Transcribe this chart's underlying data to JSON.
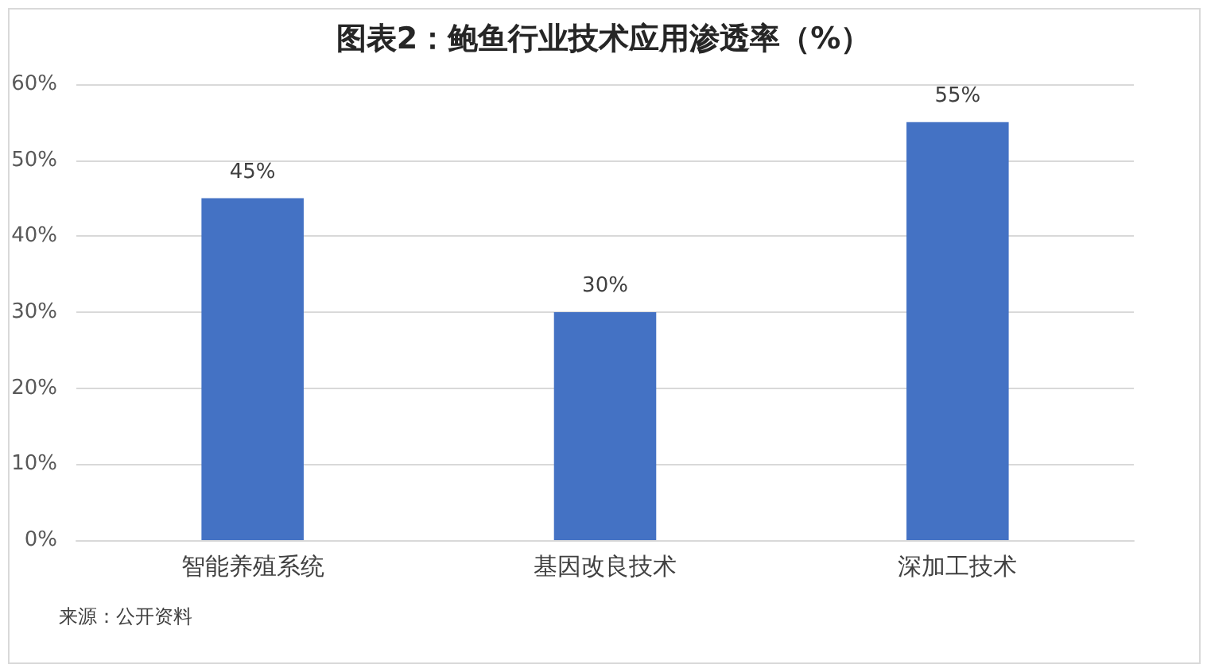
{
  "chart_data": {
    "type": "bar",
    "title": "图表2：鲍鱼行业技术应用渗透率（%）",
    "categories": [
      "智能养殖系统",
      "基因改良技术",
      "深加工技术"
    ],
    "values": [
      45,
      30,
      55
    ],
    "value_labels": [
      "45%",
      "30%",
      "55%"
    ],
    "color": "#4472c4",
    "ylim": [
      0,
      60
    ],
    "yticks": [
      {
        "value": 0,
        "label": "0%"
      },
      {
        "value": 10,
        "label": "10%"
      },
      {
        "value": 20,
        "label": "20%"
      },
      {
        "value": 30,
        "label": "30%"
      },
      {
        "value": 40,
        "label": "40%"
      },
      {
        "value": 50,
        "label": "50%"
      },
      {
        "value": 60,
        "label": "60%"
      }
    ],
    "grid": "y",
    "annotations": [
      "来源：公开资料"
    ]
  }
}
